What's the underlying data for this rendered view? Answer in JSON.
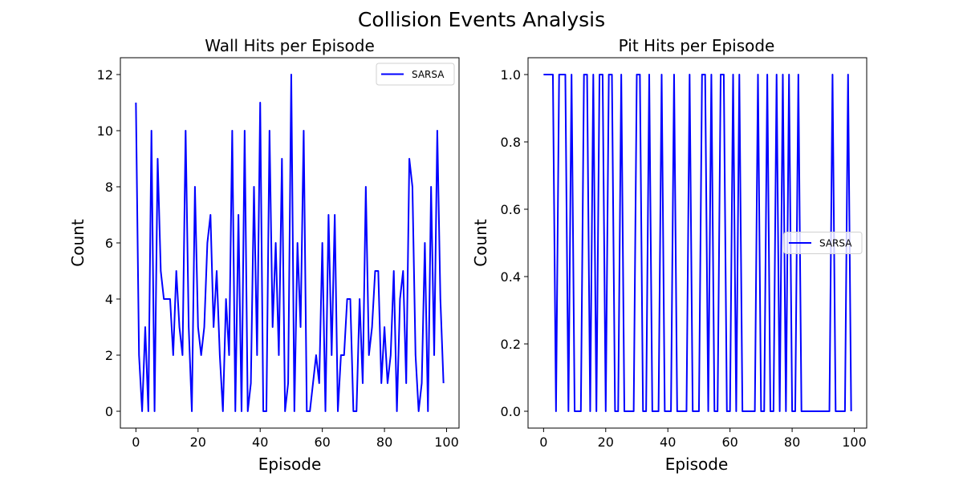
{
  "figure": {
    "title": "Collision Events Analysis"
  },
  "chart_data": [
    {
      "type": "line",
      "title": "Wall Hits per Episode",
      "xlabel": "Episode",
      "ylabel": "Count",
      "xlim": [
        -5,
        104
      ],
      "ylim": [
        -0.6,
        12.6
      ],
      "xticks": [
        0,
        20,
        40,
        60,
        80,
        100
      ],
      "yticks": [
        0,
        2,
        4,
        6,
        8,
        10,
        12
      ],
      "ytick_labels": [
        "0",
        "2",
        "4",
        "6",
        "8",
        "10",
        "12"
      ],
      "grid": false,
      "legend_position": "upper right",
      "series": [
        {
          "name": "SARSA",
          "color": "#0000ff",
          "x": [
            0,
            1,
            2,
            3,
            4,
            5,
            6,
            7,
            8,
            9,
            10,
            11,
            12,
            13,
            14,
            15,
            16,
            17,
            18,
            19,
            20,
            21,
            22,
            23,
            24,
            25,
            26,
            27,
            28,
            29,
            30,
            31,
            32,
            33,
            34,
            35,
            36,
            37,
            38,
            39,
            40,
            41,
            42,
            43,
            44,
            45,
            46,
            47,
            48,
            49,
            50,
            51,
            52,
            53,
            54,
            55,
            56,
            57,
            58,
            59,
            60,
            61,
            62,
            63,
            64,
            65,
            66,
            67,
            68,
            69,
            70,
            71,
            72,
            73,
            74,
            75,
            76,
            77,
            78,
            79,
            80,
            81,
            82,
            83,
            84,
            85,
            86,
            87,
            88,
            89,
            90,
            91,
            92,
            93,
            94,
            95,
            96,
            97,
            98,
            99
          ],
          "values": [
            11,
            2,
            0,
            3,
            0,
            10,
            0,
            9,
            5,
            4,
            4,
            4,
            2,
            5,
            3,
            2,
            10,
            3,
            0,
            8,
            3,
            2,
            3,
            6,
            7,
            3,
            5,
            2,
            0,
            4,
            2,
            10,
            0,
            7,
            0,
            10,
            0,
            1,
            8,
            2,
            11,
            0,
            0,
            10,
            3,
            6,
            2,
            9,
            0,
            1,
            12,
            0,
            6,
            3,
            10,
            0,
            0,
            1,
            2,
            1,
            6,
            0,
            7,
            2,
            7,
            0,
            2,
            2,
            4,
            4,
            0,
            0,
            4,
            1,
            8,
            2,
            3,
            5,
            5,
            1,
            3,
            1,
            2,
            5,
            0,
            4,
            5,
            1,
            9,
            8,
            2,
            0,
            1,
            6,
            0,
            8,
            2,
            10,
            4,
            1
          ]
        }
      ]
    },
    {
      "type": "line",
      "title": "Pit Hits per Episode",
      "xlabel": "Episode",
      "ylabel": "Count",
      "xlim": [
        -5,
        104
      ],
      "ylim": [
        -0.05,
        1.05
      ],
      "xticks": [
        0,
        20,
        40,
        60,
        80,
        100
      ],
      "yticks": [
        0,
        0.2,
        0.4,
        0.6,
        0.8,
        1.0
      ],
      "ytick_labels": [
        "0.0",
        "0.2",
        "0.4",
        "0.6",
        "0.8",
        "1.0"
      ],
      "grid": false,
      "legend_position": "center right",
      "series": [
        {
          "name": "SARSA",
          "color": "#0000ff",
          "x": [
            0,
            1,
            2,
            3,
            4,
            5,
            6,
            7,
            8,
            9,
            10,
            11,
            12,
            13,
            14,
            15,
            16,
            17,
            18,
            19,
            20,
            21,
            22,
            23,
            24,
            25,
            26,
            27,
            28,
            29,
            30,
            31,
            32,
            33,
            34,
            35,
            36,
            37,
            38,
            39,
            40,
            41,
            42,
            43,
            44,
            45,
            46,
            47,
            48,
            49,
            50,
            51,
            52,
            53,
            54,
            55,
            56,
            57,
            58,
            59,
            60,
            61,
            62,
            63,
            64,
            65,
            66,
            67,
            68,
            69,
            70,
            71,
            72,
            73,
            74,
            75,
            76,
            77,
            78,
            79,
            80,
            81,
            82,
            83,
            84,
            85,
            86,
            87,
            88,
            89,
            90,
            91,
            92,
            93,
            94,
            95,
            96,
            97,
            98,
            99
          ],
          "values": [
            1,
            1,
            1,
            1,
            0,
            1,
            1,
            1,
            0,
            1,
            0,
            0,
            0,
            1,
            1,
            0,
            1,
            0,
            1,
            1,
            0,
            1,
            1,
            0,
            0,
            1,
            0,
            0,
            0,
            0,
            1,
            1,
            0,
            0,
            1,
            0,
            0,
            0,
            1,
            0,
            0,
            0,
            1,
            0,
            0,
            0,
            0,
            1,
            0,
            0,
            0,
            1,
            1,
            0,
            1,
            0,
            0,
            1,
            1,
            0,
            0,
            1,
            0,
            1,
            0,
            0,
            0,
            0,
            0,
            1,
            0,
            0,
            1,
            0,
            0,
            1,
            0,
            1,
            0,
            1,
            0,
            0,
            1,
            0,
            0,
            0,
            0,
            0,
            0,
            0,
            0,
            0,
            0,
            1,
            0,
            0,
            0,
            0,
            1,
            0
          ]
        }
      ]
    }
  ]
}
